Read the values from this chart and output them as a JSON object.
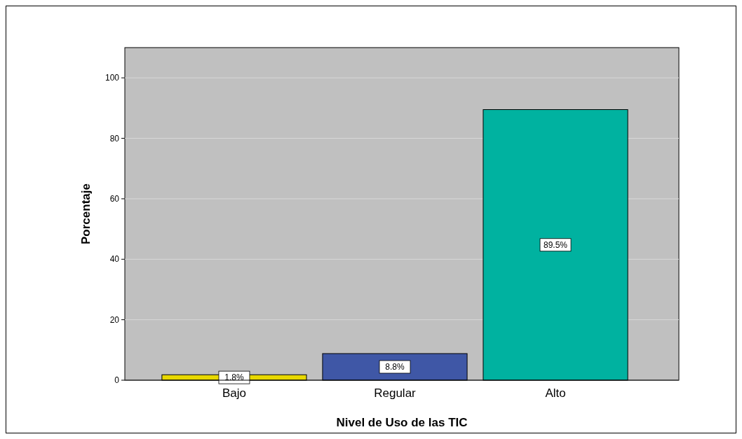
{
  "chart_data": {
    "type": "bar",
    "xlabel": "Nivel de Uso de las TIC",
    "ylabel": "Porcentaje",
    "categories": [
      "Bajo",
      "Regular",
      "Alto"
    ],
    "values": [
      1.8,
      8.8,
      89.5
    ],
    "colors": [
      "#e8d800",
      "#3f57a6",
      "#00b2a0"
    ],
    "value_labels": [
      "1.8%",
      "8.8%",
      "89.5%"
    ],
    "ylim": [
      0,
      110
    ],
    "yticks": [
      0,
      20,
      40,
      60,
      80,
      100
    ],
    "grid": "y"
  }
}
